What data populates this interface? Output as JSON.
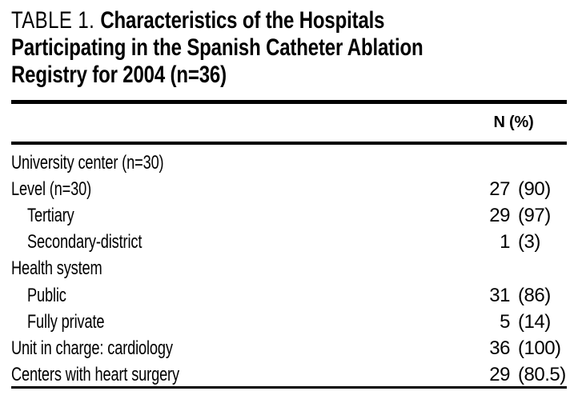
{
  "table": {
    "title": {
      "label": "TABLE 1.",
      "line1": "Characteristics of the Hospitals",
      "line2": "Participating in the Spanish Catheter Ablation",
      "line3": "Registry for 2004 (n=36)"
    },
    "column_header": "N (%)",
    "rows": [
      {
        "label": "University center (n=30)",
        "indent": false,
        "n": "",
        "pct": ""
      },
      {
        "label": "Level (n=30)",
        "indent": false,
        "n": "27",
        "pct": "(90)"
      },
      {
        "label": "Tertiary",
        "indent": true,
        "n": "29",
        "pct": "(97)"
      },
      {
        "label": "Secondary-district",
        "indent": true,
        "n": "1",
        "pct": "(3)"
      },
      {
        "label": "Health system",
        "indent": false,
        "n": "",
        "pct": ""
      },
      {
        "label": "Public",
        "indent": true,
        "n": "31",
        "pct": "(86)"
      },
      {
        "label": "Fully private",
        "indent": true,
        "n": "5",
        "pct": "(14)"
      },
      {
        "label": "Unit in charge: cardiology",
        "indent": false,
        "n": "36",
        "pct": "(100)"
      },
      {
        "label": "Centers with heart surgery",
        "indent": false,
        "n": "29",
        "pct": "(80.5)"
      }
    ],
    "colors": {
      "text": "#000000",
      "background": "#ffffff",
      "rule": "#000000"
    }
  }
}
